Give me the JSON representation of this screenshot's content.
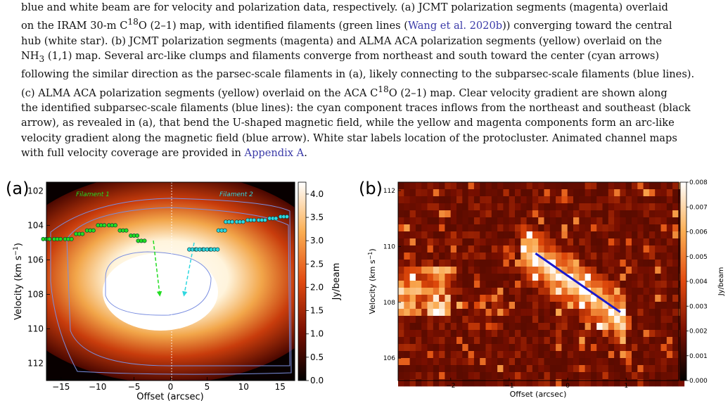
{
  "caption": {
    "line1": "blue and white beam are for velocity and polarization data, respectively. (a) JCMT polarization segments (magenta) overlaid",
    "line2_pre": "on the IRAM 30-m C",
    "line2_sup": "18",
    "line2_mid": "O (2–1) map, with identified filaments (green lines (",
    "line2_cite": "Wang et al. 2020b",
    "line2_post": ")) converging toward the central",
    "line3": "hub (white star). (b) JCMT polarization segments (magenta) and ALMA ACA polarization segments (yellow) overlaid on the",
    "line4_pre": "NH",
    "line4_sub": "3",
    "line4_post": " (1,1) map. Several arc-like clumps and filaments converge from northeast and south toward the center (cyan arrows)",
    "line5": "following the similar direction as the parsec-scale filaments in (a), likely connecting to the subparsec-scale filaments (blue lines).",
    "line6_pre": "(c) ALMA ACA polarization segments (yellow) overlaid on the ACA C",
    "line6_sup": "18",
    "line6_post": "O (2–1) map. Clear velocity gradient are shown along",
    "line7": "the identified subparsec-scale filaments (blue lines): the cyan component traces inflows from the northeast and southeast (black",
    "line8": "arrow), as revealed in (a), that bend the U-shaped magnetic field, while the yellow and magenta components form an arc-like",
    "line9": "velocity gradient along the magnetic field (blue arrow). White star labels location of the protocluster. Animated channel maps",
    "line10_pre": "with full velocity coverage are provided in ",
    "line10_link": "Appendix A",
    "line10_post": "."
  },
  "panel_a": {
    "label": "(a)",
    "xlabel": "Offset (arcsec)",
    "ylabel": "Velocity (km s",
    "ylabel_sup": "−1",
    "ylabel_end": ")",
    "filament1": "Filament 1",
    "filament2": "Filament 2",
    "colorbar_label": "Jy/beam",
    "colorbar_ticks": [
      "4.0",
      "3.5",
      "3.0",
      "2.5",
      "2.0",
      "1.5",
      "1.0",
      "0.5",
      "0.0"
    ],
    "xticks": [
      "−15",
      "−10",
      "−5",
      "0",
      "5",
      "10",
      "15"
    ],
    "yticks": [
      "102",
      "104",
      "106",
      "108",
      "110",
      "112"
    ],
    "colors": {
      "filament1": "#22dd22",
      "filament2": "#2fd8e0",
      "contour": "#7a8ee0"
    }
  },
  "panel_b": {
    "label": "(b)",
    "xlabel": "Offset (arcsec)",
    "ylabel": "Velocity (km s",
    "ylabel_sup": "−1",
    "ylabel_end": ")",
    "colorbar_label": "Jy/beam",
    "colorbar_ticks": [
      "0.008",
      "0.007",
      "0.006",
      "0.005",
      "0.004",
      "0.003",
      "0.002",
      "0.001",
      "0.000"
    ],
    "xticks": [
      "−2",
      "−1",
      "0",
      "1"
    ],
    "yticks": [
      "112",
      "110",
      "108",
      "106"
    ],
    "colors": {
      "line": "#1a1acc"
    }
  },
  "chart_data": [
    {
      "type": "heatmap",
      "title": "",
      "xlabel": "Offset (arcsec)",
      "ylabel": "Velocity (km s−1)",
      "xlim": [
        -17,
        17
      ],
      "ylim": [
        113,
        101.5
      ],
      "colorbar": {
        "label": "Jy/beam",
        "range": [
          0.0,
          4.0
        ]
      },
      "annotations": [
        "Filament 1",
        "Filament 2"
      ],
      "filament1_points": {
        "x": [
          -17,
          -15.5,
          -14,
          -12.5,
          -11,
          -9.5,
          -8,
          -6.5,
          -5,
          -4
        ],
        "y": [
          104.8,
          104.8,
          104.8,
          104.5,
          104.3,
          104.0,
          104.0,
          104.3,
          104.6,
          104.9
        ]
      },
      "filament2_points": {
        "x": [
          3,
          4,
          5,
          6,
          7,
          8,
          9.5,
          11,
          12.5,
          14,
          15.5
        ],
        "y": [
          105.4,
          105.4,
          105.4,
          105.4,
          104.3,
          103.8,
          103.8,
          103.7,
          103.7,
          103.6,
          103.5
        ]
      },
      "arrows": [
        {
          "from": [
            -2.8,
            105.3
          ],
          "to": [
            -1.3,
            108.3
          ],
          "color": "green"
        },
        {
          "from": [
            3.8,
            105.4
          ],
          "to": [
            1.7,
            108.3
          ],
          "color": "cyan"
        }
      ]
    },
    {
      "type": "heatmap",
      "title": "",
      "xlabel": "Offset (arcsec)",
      "ylabel": "Velocity (km s−1)",
      "xlim": [
        -2.9,
        1.9
      ],
      "ylim": [
        105.2,
        112.3
      ],
      "colorbar": {
        "label": "Jy/beam",
        "range": [
          0.0,
          0.008
        ]
      },
      "line": {
        "x": [
          -0.55,
          0.9
        ],
        "y": [
          109.75,
          107.65
        ]
      }
    }
  ]
}
